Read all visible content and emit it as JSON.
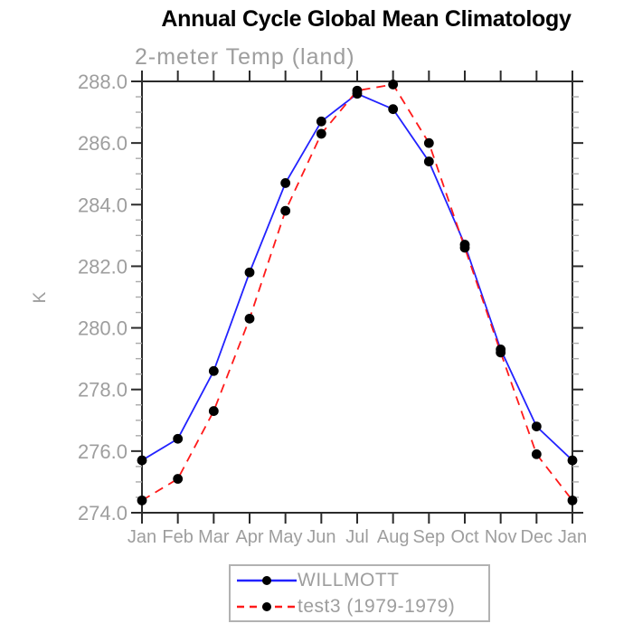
{
  "title": "Annual Cycle Global Mean Climatology",
  "subtitle": "2-meter Temp (land)",
  "ylabel": "K",
  "colors": {
    "title": "#000000",
    "axis": "#2b2b2b",
    "minor_tick": "#aaaaaa",
    "tick_label": "#9e9e9e",
    "legend_border": "#b2b2b2",
    "marker": "#000000",
    "willmott_blue": "#2222ff",
    "test3_red": "#ff1a1a"
  },
  "chart_data": {
    "type": "line",
    "title": "Annual Cycle Global Mean Climatology",
    "subtitle": "2-meter Temp (land)",
    "xlabel": "",
    "ylabel": "K",
    "x": [
      "Jan",
      "Feb",
      "Mar",
      "Apr",
      "May",
      "Jun",
      "Jul",
      "Aug",
      "Sep",
      "Oct",
      "Nov",
      "Dec",
      "Jan"
    ],
    "series": [
      {
        "name": "WILLMOTT",
        "color": "#2222ff",
        "style": "solid",
        "marker": "circle",
        "marker_color": "#000000",
        "values": [
          275.7,
          276.4,
          278.6,
          281.8,
          284.7,
          286.7,
          287.6,
          287.1,
          285.4,
          282.7,
          279.3,
          276.8,
          275.7
        ]
      },
      {
        "name": "test3 (1979-1979)",
        "color": "#ff1a1a",
        "style": "dashed",
        "marker": "circle",
        "marker_color": "#000000",
        "values": [
          274.4,
          275.1,
          277.3,
          280.3,
          283.8,
          286.3,
          287.7,
          287.9,
          286.0,
          282.6,
          279.2,
          275.9,
          274.4
        ]
      }
    ],
    "ylim": [
      274.0,
      288.0
    ],
    "ytick_major": 2.0,
    "ytick_minor": 0.5,
    "ytick_labels": [
      "288.0",
      "286.0",
      "284.0",
      "282.0",
      "280.0",
      "278.0",
      "276.0",
      "274.0"
    ],
    "grid": false,
    "legend_position": "bottom-center"
  }
}
